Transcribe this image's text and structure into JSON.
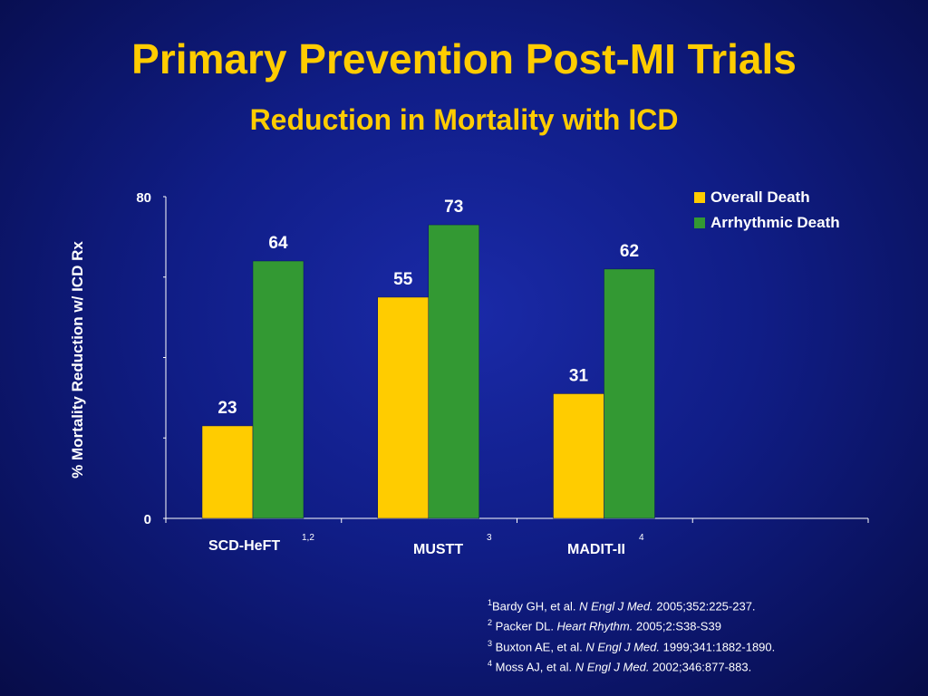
{
  "slide": {
    "title": "Primary Prevention Post-MI Trials",
    "subtitle": "Reduction in Mortality with ICD"
  },
  "colors": {
    "background": "#101d86",
    "title": "#ffcc00",
    "overall": "#ffcc00",
    "arrhythmic": "#339933",
    "text": "#ffffff"
  },
  "chart_data": {
    "type": "bar",
    "ylabel": "% Mortality Reduction w/ ICD Rx",
    "ylim": [
      0,
      80
    ],
    "yticks": [
      "0",
      "80"
    ],
    "grid": false,
    "legend_position": "top-right",
    "categories": [
      "SCD-HeFT",
      "MUSTT",
      "MADIT-II"
    ],
    "category_superscripts": [
      "1,2",
      "3",
      "4"
    ],
    "series": [
      {
        "name": "Overall Death",
        "values": [
          23,
          55,
          31
        ]
      },
      {
        "name": "Arrhythmic Death",
        "values": [
          64,
          73,
          62
        ]
      }
    ]
  },
  "references": [
    {
      "num": "1",
      "pre": "Bardy GH, et al. ",
      "journal": "N Engl J Med.",
      "post": " 2005;352:225-237."
    },
    {
      "num": "2",
      "pre": " Packer DL. ",
      "journal": "Heart Rhythm.",
      "post": " 2005;2:S38-S39"
    },
    {
      "num": "3",
      "pre": " Buxton AE, et al. ",
      "journal": "N Engl J Med.",
      "post": " 1999;341:1882-1890."
    },
    {
      "num": "4",
      "pre": " Moss AJ, et al. ",
      "journal": "N Engl J Med.",
      "post": " 2002;346:877-883."
    }
  ]
}
